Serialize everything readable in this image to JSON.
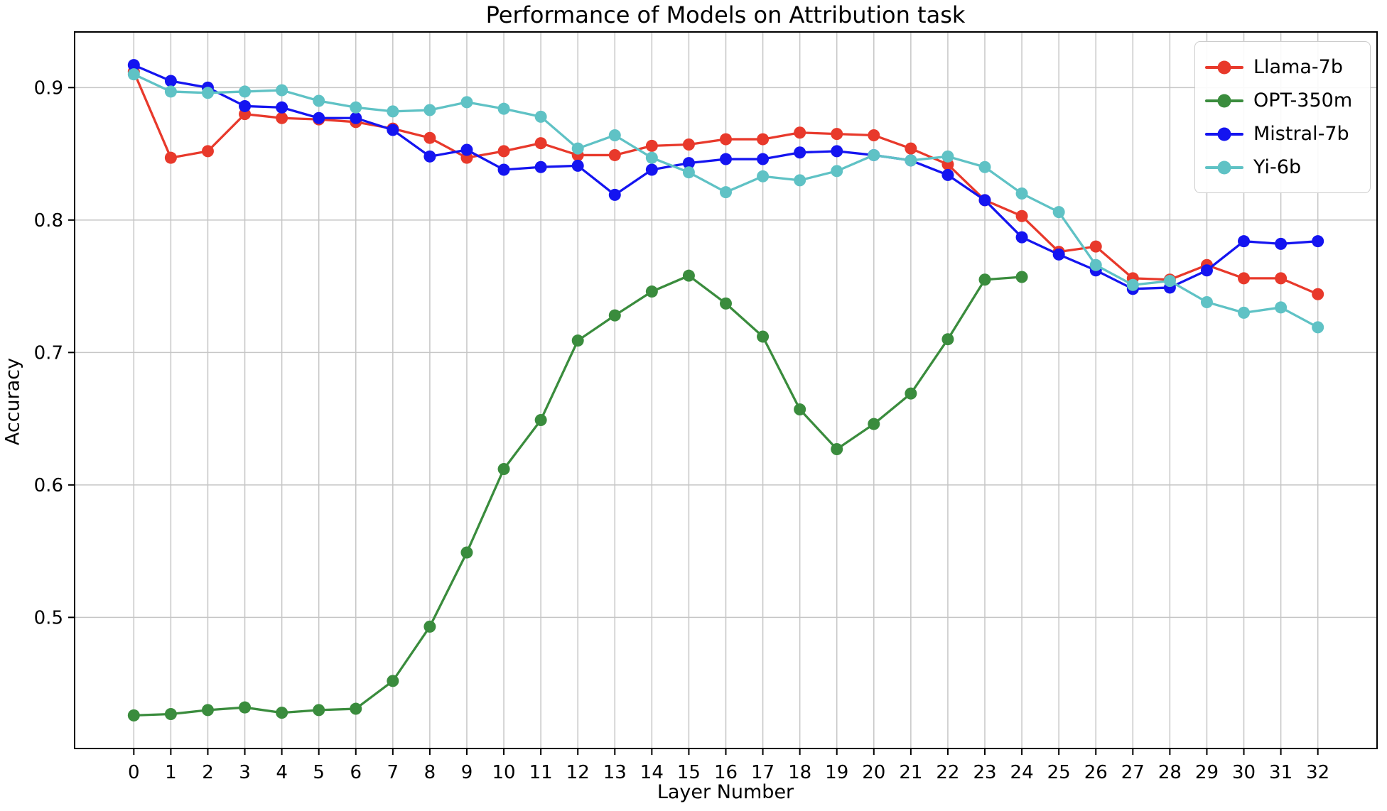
{
  "chart_data": {
    "type": "line",
    "title": "Performance of Models on Attribution task",
    "xlabel": "Layer Number",
    "ylabel": "Accuracy",
    "xlim": [
      -1.6,
      33.6
    ],
    "ylim": [
      0.401,
      0.942
    ],
    "xticks": [
      0,
      1,
      2,
      3,
      4,
      5,
      6,
      7,
      8,
      9,
      10,
      11,
      12,
      13,
      14,
      15,
      16,
      17,
      18,
      19,
      20,
      21,
      22,
      23,
      24,
      25,
      26,
      27,
      28,
      29,
      30,
      31,
      32
    ],
    "yticks": [
      0.5,
      0.6,
      0.7,
      0.8,
      0.9
    ],
    "ytick_labels": [
      "0.5",
      "0.6",
      "0.7",
      "0.8",
      "0.9"
    ],
    "grid": true,
    "grid_color": "#c6c6c6",
    "spine_color": "#000000",
    "legend_position": "upper right",
    "series": [
      {
        "name": "Llama-7b",
        "color": "#e8392b",
        "x": [
          0,
          1,
          2,
          3,
          4,
          5,
          6,
          7,
          8,
          9,
          10,
          11,
          12,
          13,
          14,
          15,
          16,
          17,
          18,
          19,
          20,
          21,
          22,
          23,
          24,
          25,
          26,
          27,
          28,
          29,
          30,
          31,
          32
        ],
        "values": [
          0.912,
          0.847,
          0.852,
          0.88,
          0.877,
          0.876,
          0.874,
          0.869,
          0.862,
          0.847,
          0.852,
          0.858,
          0.849,
          0.849,
          0.856,
          0.857,
          0.861,
          0.861,
          0.866,
          0.865,
          0.864,
          0.854,
          0.842,
          0.815,
          0.803,
          0.776,
          0.78,
          0.756,
          0.755,
          0.766,
          0.756,
          0.756,
          0.744
        ]
      },
      {
        "name": "OPT-350m",
        "color": "#3a8c3d",
        "x": [
          0,
          1,
          2,
          3,
          4,
          5,
          6,
          7,
          8,
          9,
          10,
          11,
          12,
          13,
          14,
          15,
          16,
          17,
          18,
          19,
          20,
          21,
          22,
          23,
          24
        ],
        "values": [
          0.426,
          0.427,
          0.43,
          0.432,
          0.428,
          0.43,
          0.431,
          0.452,
          0.493,
          0.549,
          0.612,
          0.649,
          0.709,
          0.728,
          0.746,
          0.758,
          0.737,
          0.712,
          0.657,
          0.627,
          0.646,
          0.669,
          0.71,
          0.755,
          0.757
        ]
      },
      {
        "name": "Mistral-7b",
        "color": "#1414f0",
        "x": [
          0,
          1,
          2,
          3,
          4,
          5,
          6,
          7,
          8,
          9,
          10,
          11,
          12,
          13,
          14,
          15,
          16,
          17,
          18,
          19,
          20,
          21,
          22,
          23,
          24,
          25,
          26,
          27,
          28,
          29,
          30,
          31,
          32
        ],
        "values": [
          0.917,
          0.905,
          0.9,
          0.886,
          0.885,
          0.877,
          0.877,
          0.868,
          0.848,
          0.853,
          0.838,
          0.84,
          0.841,
          0.819,
          0.838,
          0.843,
          0.846,
          0.846,
          0.851,
          0.852,
          0.849,
          0.845,
          0.834,
          0.815,
          0.787,
          0.774,
          0.762,
          0.748,
          0.749,
          0.762,
          0.784,
          0.782,
          0.784
        ]
      },
      {
        "name": "Yi-6b",
        "color": "#5fc2c5",
        "x": [
          0,
          1,
          2,
          3,
          4,
          5,
          6,
          7,
          8,
          9,
          10,
          11,
          12,
          13,
          14,
          15,
          16,
          17,
          18,
          19,
          20,
          21,
          22,
          23,
          24,
          25,
          26,
          27,
          28,
          29,
          30,
          31,
          32
        ],
        "values": [
          0.91,
          0.897,
          0.896,
          0.897,
          0.898,
          0.89,
          0.885,
          0.882,
          0.883,
          0.889,
          0.884,
          0.878,
          0.854,
          0.864,
          0.847,
          0.836,
          0.821,
          0.833,
          0.83,
          0.837,
          0.849,
          0.845,
          0.848,
          0.84,
          0.82,
          0.806,
          0.766,
          0.751,
          0.754,
          0.738,
          0.73,
          0.734,
          0.719
        ]
      }
    ]
  }
}
